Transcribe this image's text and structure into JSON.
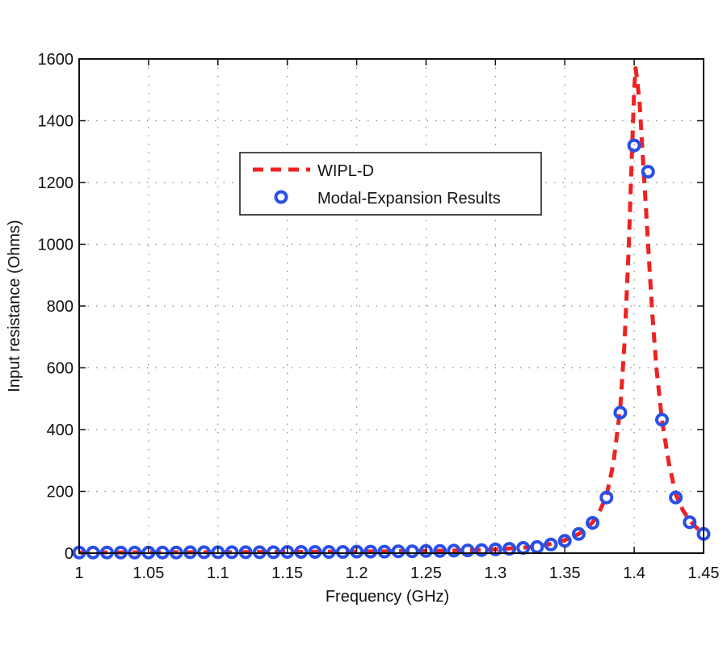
{
  "chart_data": {
    "type": "line",
    "title": "",
    "xlabel": "Frequency (GHz)",
    "ylabel": "Input resistance (Ohms)",
    "xlim": [
      1.0,
      1.45
    ],
    "ylim": [
      0,
      1600
    ],
    "xticks": [
      1,
      1.05,
      1.1,
      1.15,
      1.2,
      1.25,
      1.3,
      1.35,
      1.4,
      1.45
    ],
    "xtick_labels": [
      "1",
      "1.05",
      "1.1",
      "1.15",
      "1.2",
      "1.25",
      "1.3",
      "1.35",
      "1.4",
      "1.45"
    ],
    "yticks": [
      0,
      200,
      400,
      600,
      800,
      1000,
      1200,
      1400,
      1600
    ],
    "ytick_labels": [
      "0",
      "200",
      "400",
      "600",
      "800",
      "1000",
      "1200",
      "1400",
      "1600"
    ],
    "grid": true,
    "legend_position": "upper-center",
    "colors": {
      "wipl": "#ee2222",
      "modal": "#2a4fe8",
      "axis": "#111111",
      "grid": "#888888"
    },
    "series": [
      {
        "name": "WIPL-D",
        "style": "dashed-line",
        "x": [
          1.0,
          1.05,
          1.1,
          1.15,
          1.2,
          1.25,
          1.28,
          1.3,
          1.32,
          1.33,
          1.34,
          1.35,
          1.36,
          1.365,
          1.37,
          1.375,
          1.38,
          1.385,
          1.39,
          1.393,
          1.396,
          1.398,
          1.4,
          1.401,
          1.402,
          1.404,
          1.406,
          1.408,
          1.41,
          1.413,
          1.416,
          1.42,
          1.425,
          1.43,
          1.435,
          1.44,
          1.445,
          1.45
        ],
        "y": [
          2,
          2.5,
          3,
          4,
          5,
          7,
          9,
          12,
          18,
          22,
          30,
          42,
          62,
          78,
          100,
          135,
          185,
          290,
          470,
          680,
          980,
          1250,
          1500,
          1570,
          1540,
          1450,
          1300,
          1150,
          1000,
          780,
          600,
          430,
          290,
          190,
          140,
          105,
          82,
          62
        ]
      },
      {
        "name": "Modal-Expansion Results",
        "style": "circle-markers",
        "x": [
          1.0,
          1.01,
          1.02,
          1.03,
          1.04,
          1.05,
          1.06,
          1.07,
          1.08,
          1.09,
          1.1,
          1.11,
          1.12,
          1.13,
          1.14,
          1.15,
          1.16,
          1.17,
          1.18,
          1.19,
          1.2,
          1.21,
          1.22,
          1.23,
          1.24,
          1.25,
          1.26,
          1.27,
          1.28,
          1.29,
          1.3,
          1.31,
          1.32,
          1.33,
          1.34,
          1.35,
          1.36,
          1.37,
          1.38,
          1.39,
          1.4,
          1.41,
          1.42,
          1.43,
          1.44,
          1.45
        ],
        "y": [
          2,
          2,
          2,
          2,
          2,
          2,
          2,
          2,
          3,
          3,
          3,
          3,
          3,
          3,
          3,
          4,
          4,
          4,
          4,
          4,
          5,
          5,
          5,
          6,
          6,
          7,
          7,
          8,
          9,
          10,
          12,
          14,
          17,
          20,
          28,
          40,
          62,
          98,
          180,
          455,
          1320,
          1235,
          432,
          180,
          100,
          62
        ]
      }
    ]
  }
}
